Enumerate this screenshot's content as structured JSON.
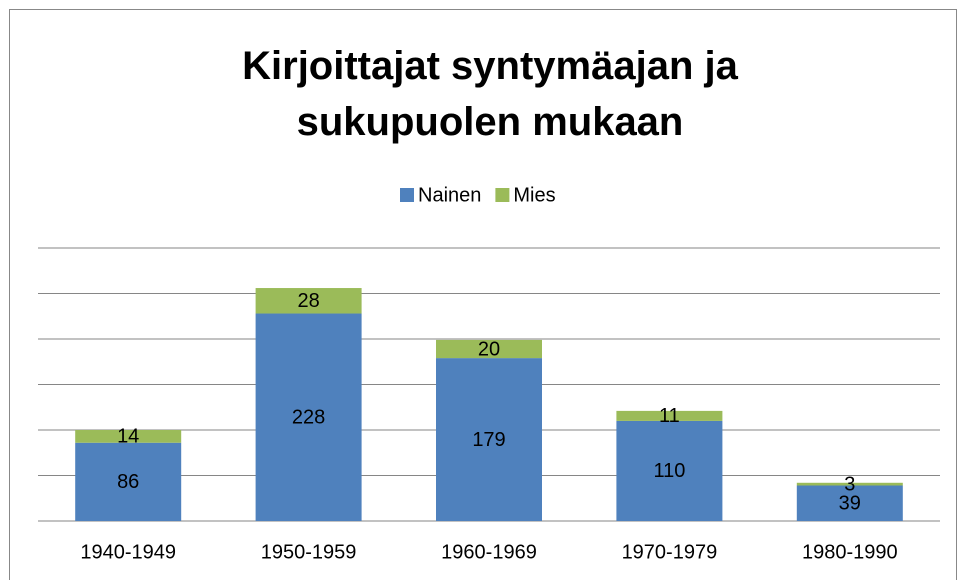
{
  "chart_data": {
    "type": "stacked_bar",
    "title": "Kirjoittajat syntymäajan ja sukupuolen mukaan",
    "categories": [
      "1940-1949",
      "1950-1959",
      "1960-1969",
      "1970-1979",
      "1980-1990"
    ],
    "series": [
      {
        "name": "Nainen",
        "color": "#4f81bd",
        "values": [
          86,
          228,
          179,
          110,
          39
        ]
      },
      {
        "name": "Mies",
        "color": "#9bbb59",
        "values": [
          14,
          28,
          20,
          11,
          3
        ]
      }
    ],
    "ylim": [
      0,
      300
    ],
    "yticks": [
      0,
      50,
      100,
      150,
      200,
      250,
      300
    ],
    "grid": true,
    "legend": "top"
  }
}
